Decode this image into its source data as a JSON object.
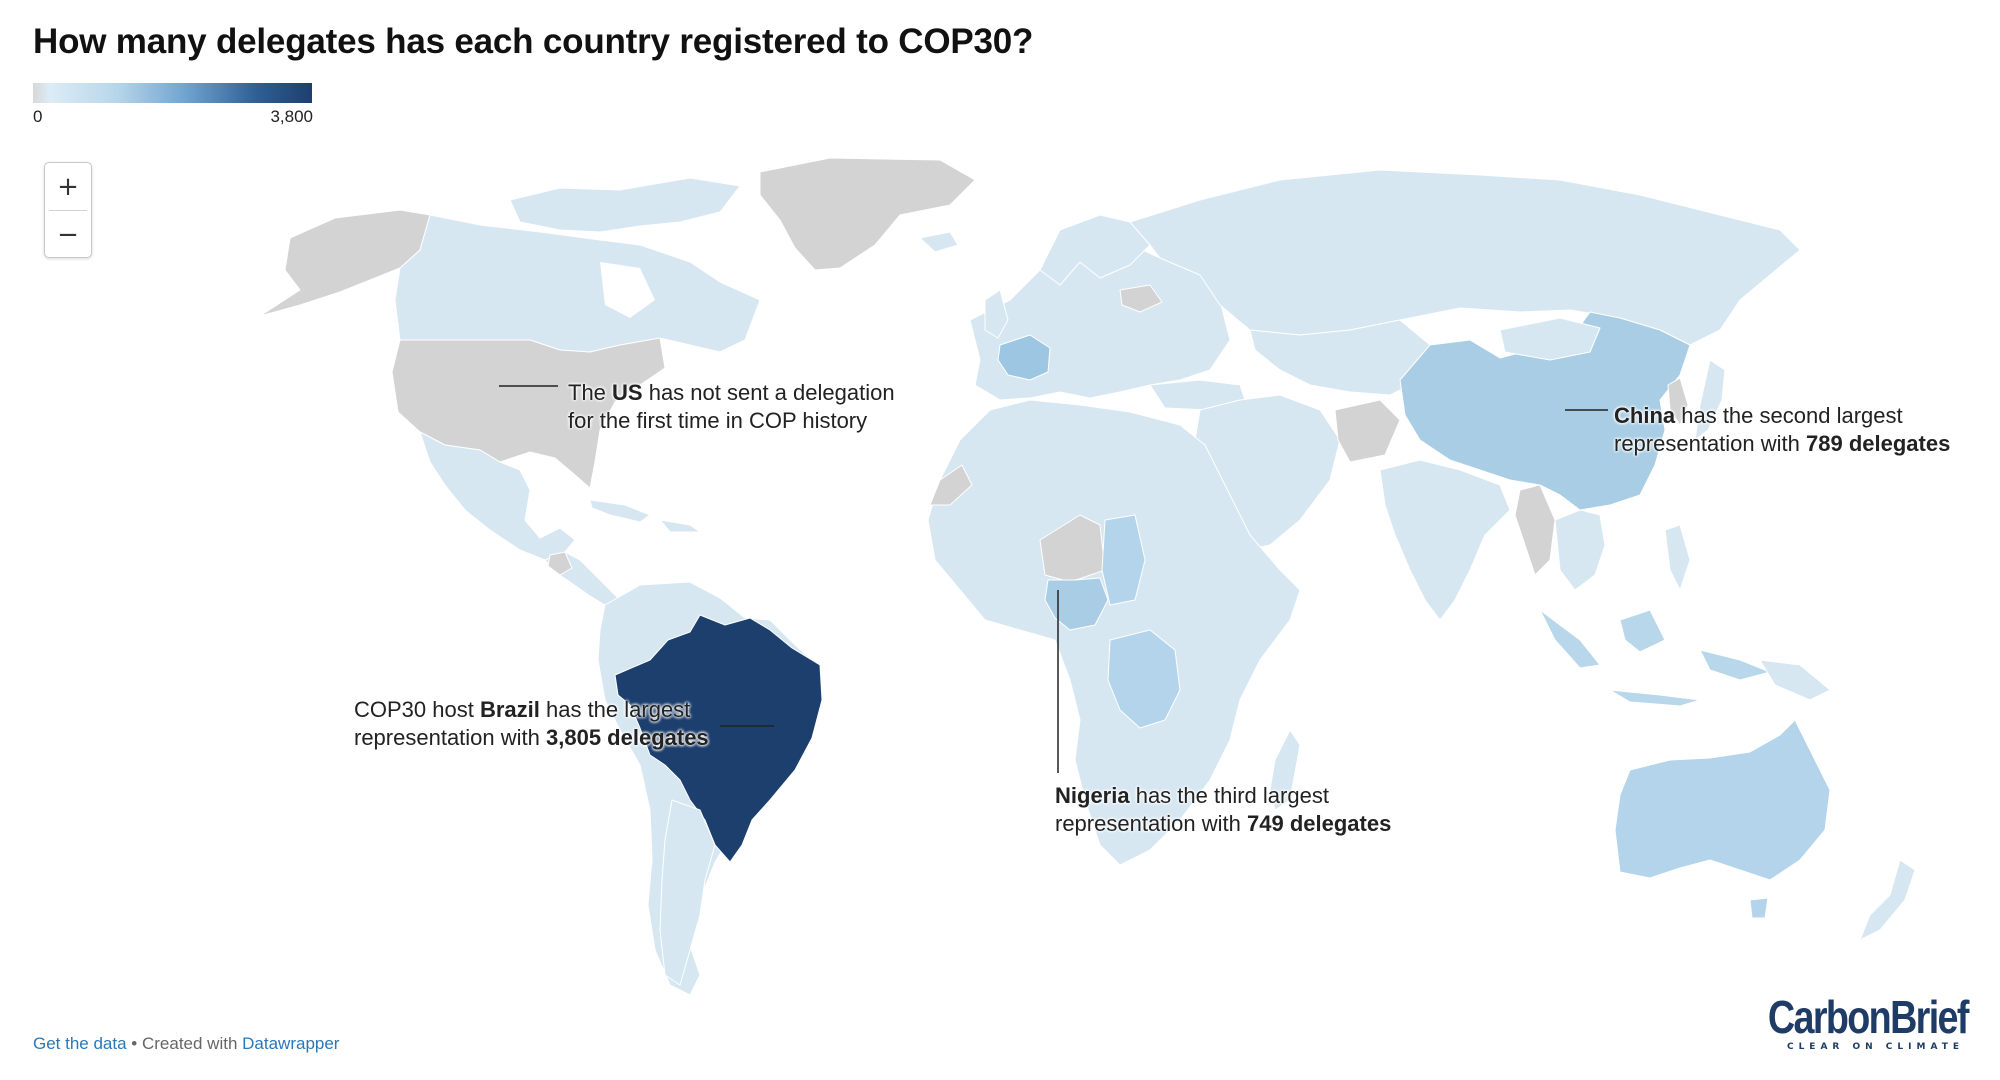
{
  "title": "How many delegates has each country registered to COP30?",
  "legend": {
    "min_label": "0",
    "max_label": "3,800"
  },
  "zoom": {
    "in_label": "+",
    "out_label": "−"
  },
  "annotations": {
    "us": {
      "pre": "The ",
      "bold": "US",
      "post": " has not sent a delegation",
      "line2": "for the first time in COP history"
    },
    "china": {
      "bold": "China",
      "post": " has the second largest",
      "line2_pre": "representation with ",
      "line2_bold": "789 delegates"
    },
    "brazil": {
      "pre": "COP30 host ",
      "bold": "Brazil",
      "post": " has the largest",
      "line2_pre": "representation with ",
      "line2_bold": "3,805 delegates"
    },
    "nigeria": {
      "bold": "Nigeria",
      "post": " has the third largest",
      "line2_pre": "representation with ",
      "line2_bold": "749 delegates"
    }
  },
  "footer": {
    "get_data": "Get the data",
    "separator": " • Created with ",
    "tool": "Datawrapper"
  },
  "logo": {
    "main": "CarbonBrief",
    "sub": "CLEAR ON CLIMATE"
  },
  "colors": {
    "no_data": "#d3d3d3",
    "low": "#d6e7f2",
    "mid": "#a8cde4",
    "high": "#1d3f6e",
    "france": "#9dc6e3"
  },
  "regions": [
    {
      "name": "Greenland",
      "value": null
    },
    {
      "name": "Alaska",
      "value": null
    },
    {
      "name": "Canada",
      "value": "low"
    },
    {
      "name": "United States",
      "value": null
    },
    {
      "name": "Mexico",
      "value": "low"
    },
    {
      "name": "Central America",
      "value": "low"
    },
    {
      "name": "Brazil",
      "value": 3805
    },
    {
      "name": "China",
      "value": 789
    },
    {
      "name": "Nigeria",
      "value": 749
    }
  ]
}
